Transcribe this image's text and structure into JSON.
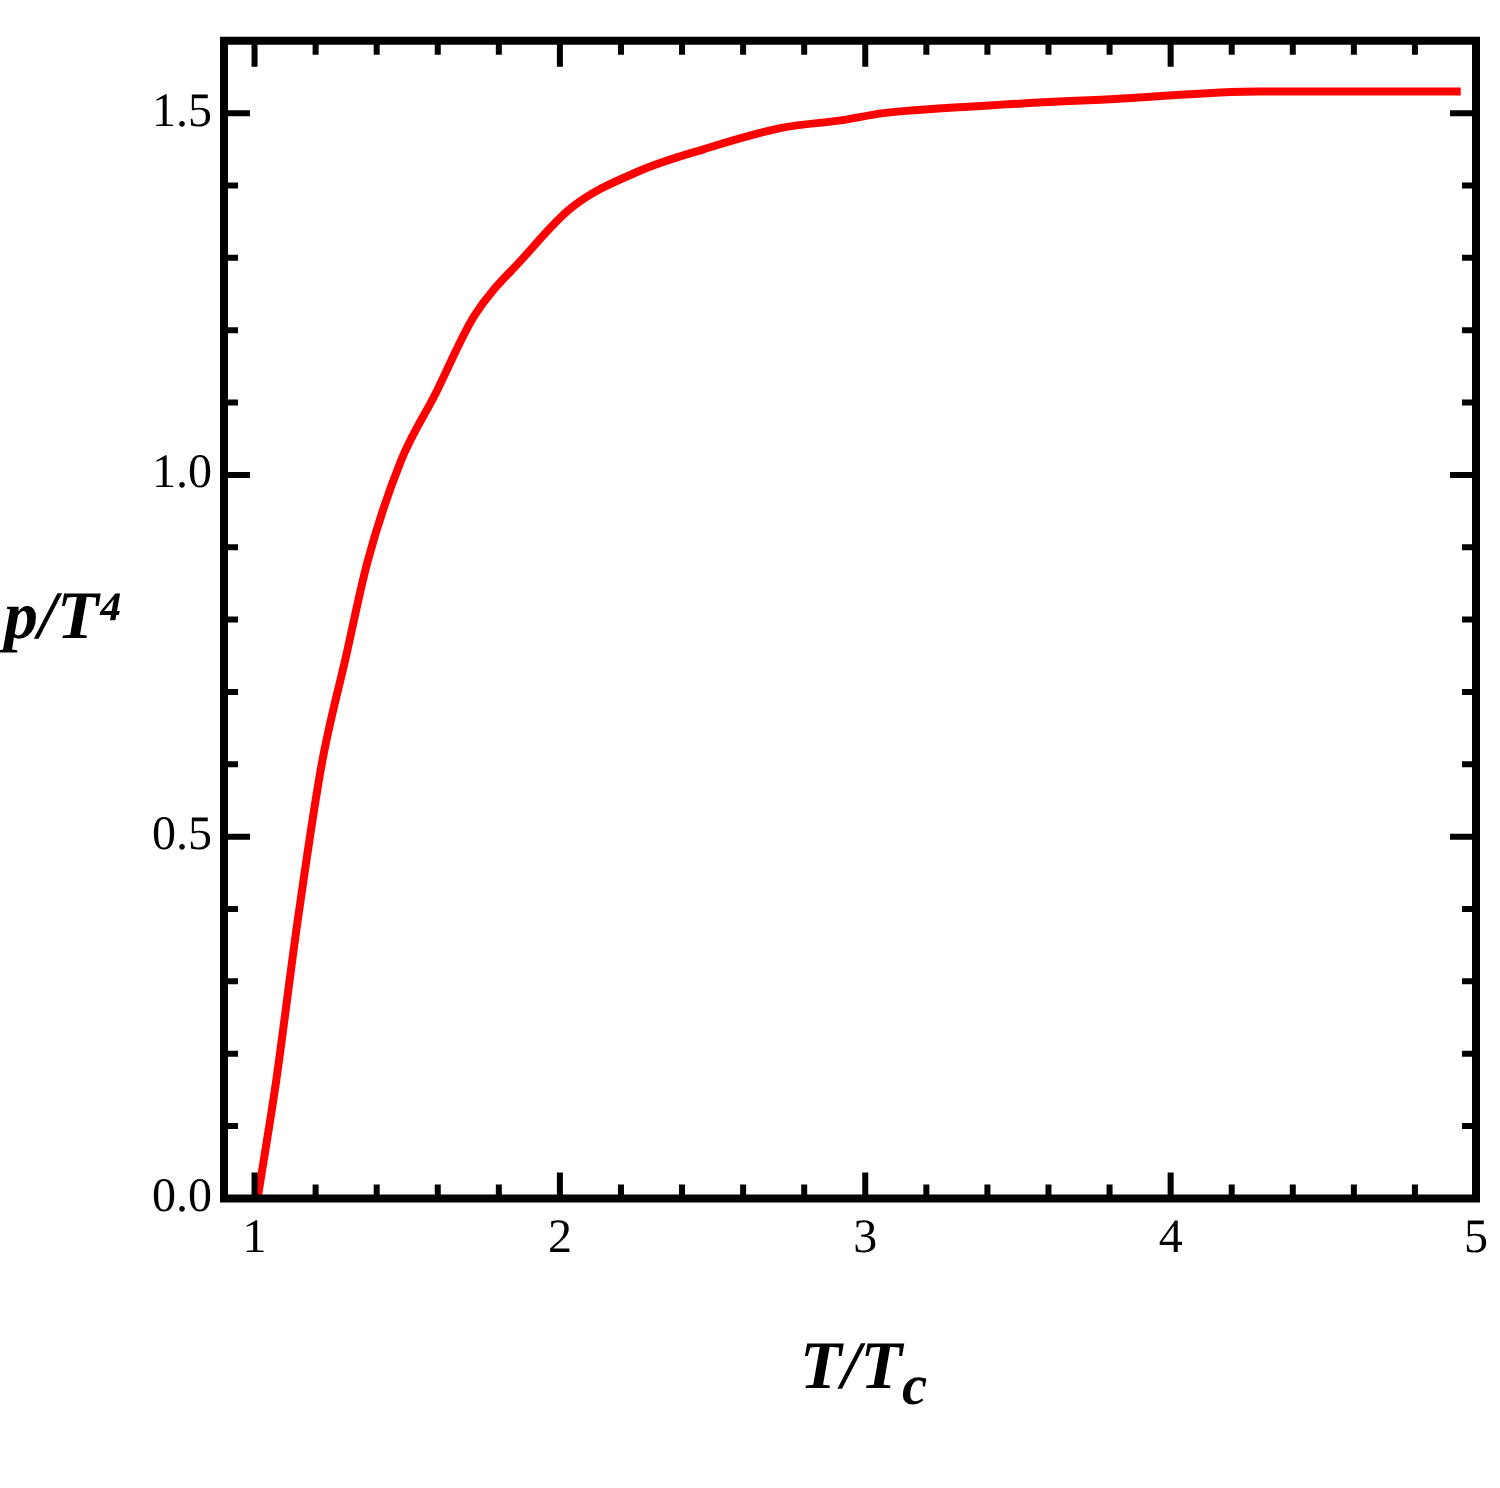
{
  "chart_data": {
    "type": "line",
    "xlabel": "T/T$_{c}$",
    "ylabel": "p/T⁴",
    "series": [
      {
        "color": "#ff0000",
        "x": [
          1.01,
          1.07,
          1.14,
          1.22,
          1.3,
          1.37,
          1.48,
          1.59,
          1.72,
          1.88,
          2.04,
          2.26,
          2.47,
          2.73,
          2.92,
          3.06,
          3.38,
          3.83,
          4.29,
          4.95
        ],
        "values": [
          0,
          0.16,
          0.38,
          0.6,
          0.75,
          0.88,
          1.02,
          1.11,
          1.22,
          1.3,
          1.37,
          1.42,
          1.45,
          1.48,
          1.49,
          1.5,
          1.51,
          1.52,
          1.53,
          1.53
        ]
      }
    ],
    "xlim": [
      0.9,
      5
    ],
    "ylim": [
      0,
      1.6
    ],
    "xticks": [
      1,
      {
        "value": 1.2,
        "label": null
      },
      {
        "value": 1.4,
        "label": null
      },
      {
        "value": 1.6,
        "label": null
      },
      {
        "value": 1.8,
        "label": null
      },
      2,
      {
        "value": 2.2,
        "label": null
      },
      {
        "value": 2.4,
        "label": null
      },
      {
        "value": 2.6,
        "label": null
      },
      {
        "value": 2.8,
        "label": null
      },
      3,
      {
        "value": 3.2,
        "label": null
      },
      {
        "value": 3.4,
        "label": null
      },
      {
        "value": 3.6,
        "label": null
      },
      {
        "value": 3.8,
        "label": null
      },
      4,
      {
        "value": 4.2,
        "label": null
      },
      {
        "value": 4.4,
        "label": null
      },
      {
        "value": 4.6,
        "label": null
      },
      {
        "value": 4.8,
        "label": null
      },
      5
    ],
    "yticks": [
      {
        "value": 0,
        "label": "0.0"
      },
      {
        "value": 0.1,
        "label": null
      },
      {
        "value": 0.2,
        "label": null
      },
      {
        "value": 0.3,
        "label": null
      },
      {
        "value": 0.4,
        "label": null
      },
      {
        "value": 0.5,
        "label": "0.5"
      },
      {
        "value": 0.6,
        "label": null
      },
      {
        "value": 0.7,
        "label": null
      },
      {
        "value": 0.8,
        "label": null
      },
      {
        "value": 0.9,
        "label": null
      },
      {
        "value": 1.0,
        "label": "1.0"
      },
      {
        "value": 1.1,
        "label": null
      },
      {
        "value": 1.2,
        "label": null
      },
      {
        "value": 1.3,
        "label": null
      },
      {
        "value": 1.4,
        "label": null
      },
      {
        "value": 1.5,
        "label": "1.5"
      }
    ],
    "grid": false,
    "legend": false,
    "marker": "none",
    "line_style": "solid"
  }
}
